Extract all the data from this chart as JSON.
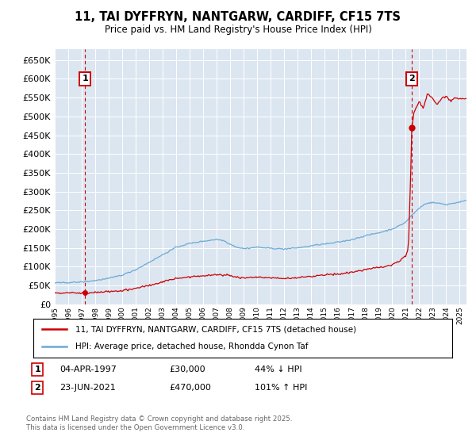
{
  "title": "11, TAI DYFFRYN, NANTGARW, CARDIFF, CF15 7TS",
  "subtitle": "Price paid vs. HM Land Registry's House Price Index (HPI)",
  "legend_label_red": "11, TAI DYFFRYN, NANTGARW, CARDIFF, CF15 7TS (detached house)",
  "legend_label_blue": "HPI: Average price, detached house, Rhondda Cynon Taf",
  "annotation1_date": "04-APR-1997",
  "annotation1_price": "£30,000",
  "annotation1_hpi": "44% ↓ HPI",
  "annotation2_date": "23-JUN-2021",
  "annotation2_price": "£470,000",
  "annotation2_hpi": "101% ↑ HPI",
  "footnote": "Contains HM Land Registry data © Crown copyright and database right 2025.\nThis data is licensed under the Open Government Licence v3.0.",
  "ylim": [
    0,
    680000
  ],
  "yticks": [
    0,
    50000,
    100000,
    150000,
    200000,
    250000,
    300000,
    350000,
    400000,
    450000,
    500000,
    550000,
    600000,
    650000
  ],
  "hpi_color": "#6aaad4",
  "sale_color": "#cc0000",
  "vline_color": "#cc0000",
  "sale1_x": 1997.25,
  "sale1_y": 30000,
  "sale2_x": 2021.47,
  "sale2_y": 470000,
  "xmin": 1995,
  "xmax": 2025.5,
  "plot_bg": "#dce6f1"
}
